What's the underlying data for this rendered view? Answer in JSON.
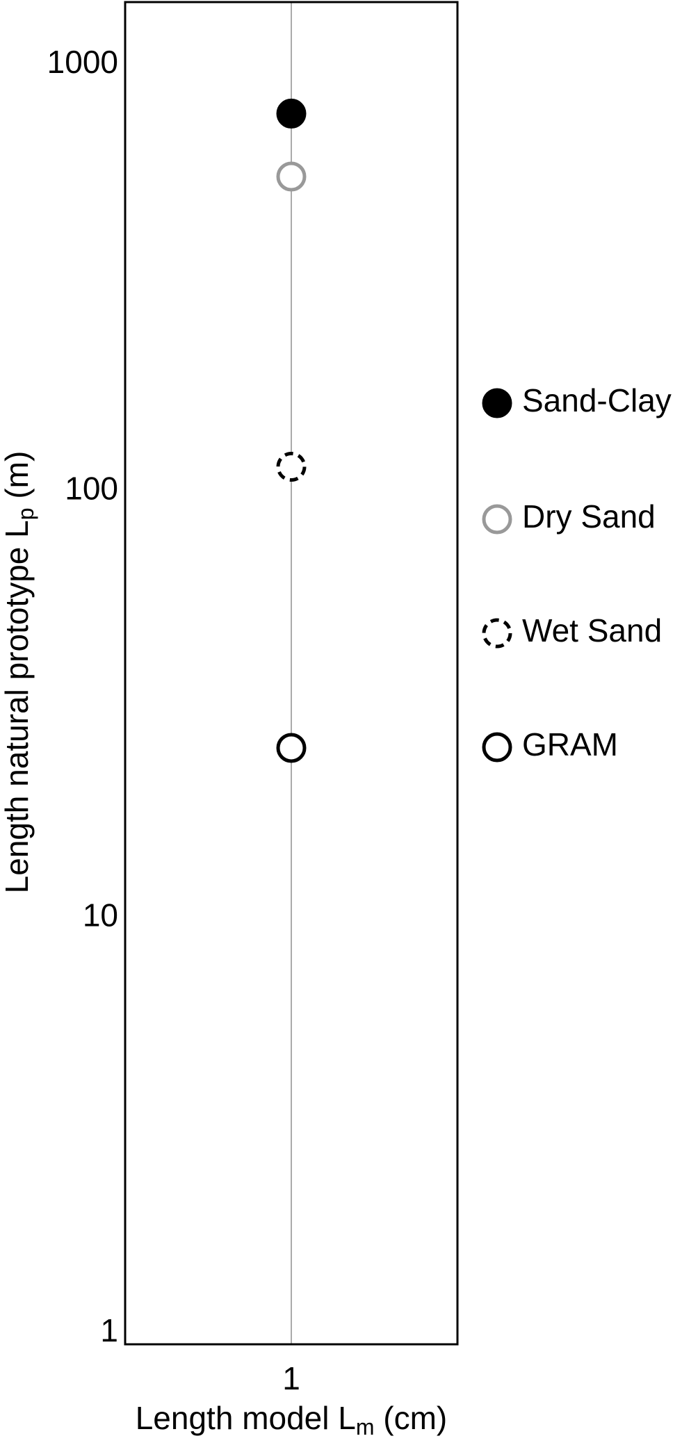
{
  "chart_data": {
    "type": "scatter",
    "y_label": {
      "text": "Length natural prototype L",
      "sub": "p",
      "suffix": " (m)"
    },
    "x_label": {
      "text": "Length model L",
      "sub": "m",
      "suffix": " (cm)"
    },
    "categories": [
      "1"
    ],
    "log_scale_y": true,
    "ylim": [
      1,
      1400
    ],
    "yticks": [
      1,
      10,
      100,
      1000
    ],
    "grid_x": true,
    "legend": "right",
    "series": [
      {
        "name": "Sand-Clay",
        "color": "#000000",
        "marker": "filled",
        "values": [
          767
        ]
      },
      {
        "name": "Dry Sand",
        "color": "#999999",
        "marker": "open",
        "values": [
          546
        ]
      },
      {
        "name": "Wet Sand",
        "color": "#000000",
        "marker": "dashed",
        "values": [
          114
        ]
      },
      {
        "name": "GRAM",
        "color": "#000000",
        "marker": "open",
        "values": [
          25
        ]
      }
    ]
  }
}
